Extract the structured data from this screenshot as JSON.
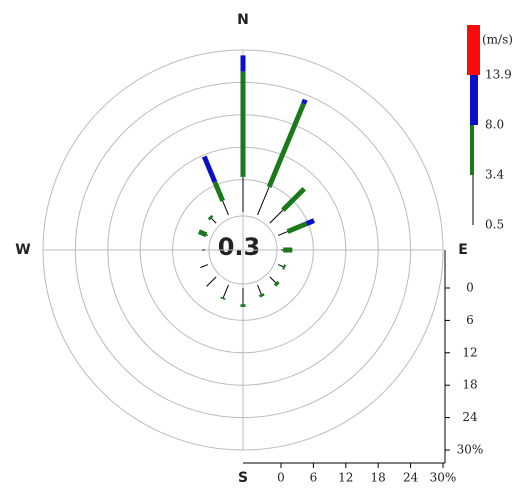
{
  "chart_data": {
    "type": "windrose",
    "categories": [
      "N",
      null,
      null,
      null,
      "E",
      null,
      null,
      null,
      "S",
      null,
      null,
      null,
      "W",
      null,
      null,
      null
    ],
    "calm": 0.3,
    "unit": "(m/s)",
    "series": [
      {
        "name": "0.5",
        "color": "#000000",
        "values": [
          6.5,
          5.6,
          3.4,
          1.9,
          0.4,
          1.0,
          1.5,
          1.8,
          3.0,
          2.5,
          2.5,
          1.5,
          0.5,
          0.3,
          1.2,
          2.8
        ]
      },
      {
        "name": "3.4",
        "color": "#1a7a1a",
        "values": [
          19.5,
          16.7,
          5.6,
          3.8,
          1.7,
          0.4,
          0.6,
          0.5,
          0.5,
          0.3,
          0,
          0,
          0,
          1.5,
          0.5,
          3.8
        ]
      },
      {
        "name": "8.0",
        "color": "#0a10c8",
        "values": [
          3,
          0.8,
          0,
          1.5,
          0,
          0,
          0,
          0,
          0,
          0,
          0,
          0,
          0,
          0,
          0,
          5.1
        ]
      },
      {
        "name": "13.9",
        "color": "#ff0a0a",
        "values": [
          0,
          0,
          0,
          0,
          0,
          0,
          0,
          0,
          0,
          0,
          0,
          0,
          0,
          0,
          0,
          0
        ]
      }
    ],
    "rlim": [
      0,
      30
    ],
    "rticks": [
      0,
      6,
      12,
      18,
      24,
      {
        "value": 30,
        "label": "30%"
      }
    ]
  }
}
